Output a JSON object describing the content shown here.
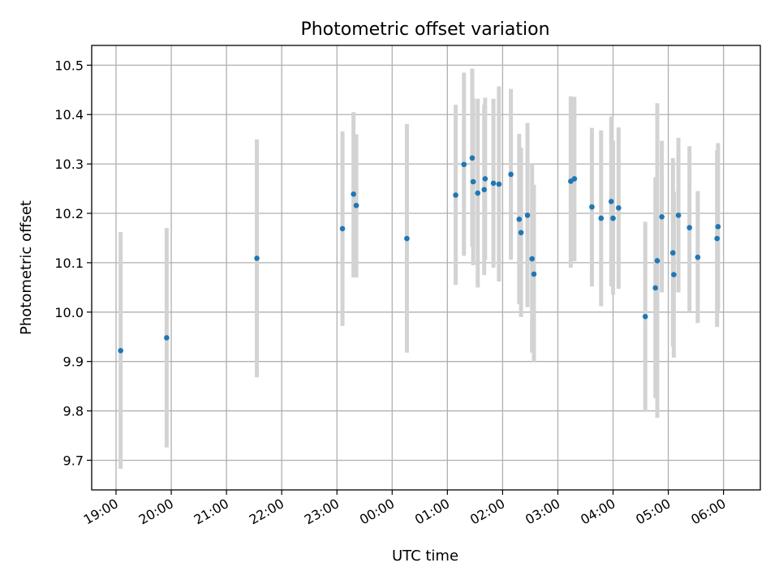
{
  "chart_data": {
    "type": "scatter",
    "title": "Photometric offset variation",
    "xlabel": "UTC time",
    "ylabel": "Photometric offset",
    "grid": true,
    "legend": "none",
    "colors": {
      "points": "#1f77b4",
      "errorbars": "#d3d3d3",
      "grid": "#b0b0b0"
    },
    "xlim": [
      "19:00",
      "06:40"
    ],
    "ylim": [
      9.64,
      10.54
    ],
    "x_ticks": [
      "19:00",
      "20:00",
      "21:00",
      "22:00",
      "23:00",
      "00:00",
      "01:00",
      "02:00",
      "03:00",
      "04:00",
      "05:00",
      "06:00"
    ],
    "y_ticks": [
      "9.7",
      "9.8",
      "9.9",
      "10.0",
      "10.1",
      "10.2",
      "10.3",
      "10.4",
      "10.5"
    ],
    "points": [
      {
        "x": "19:05",
        "y": 9.922,
        "lo": 9.683,
        "hi": 10.162
      },
      {
        "x": "19:55",
        "y": 9.948,
        "lo": 9.726,
        "hi": 10.17
      },
      {
        "x": "21:33",
        "y": 10.109,
        "lo": 9.868,
        "hi": 10.35
      },
      {
        "x": "23:06",
        "y": 10.169,
        "lo": 9.972,
        "hi": 10.366
      },
      {
        "x": "23:18",
        "y": 10.239,
        "lo": 10.07,
        "hi": 10.405
      },
      {
        "x": "23:21",
        "y": 10.216,
        "lo": 10.07,
        "hi": 10.36
      },
      {
        "x": "00:16",
        "y": 10.149,
        "lo": 9.918,
        "hi": 10.381
      },
      {
        "x": "01:09",
        "y": 10.237,
        "lo": 10.055,
        "hi": 10.42
      },
      {
        "x": "01:18",
        "y": 10.299,
        "lo": 10.114,
        "hi": 10.485
      },
      {
        "x": "01:27",
        "y": 10.312,
        "lo": 10.132,
        "hi": 10.493
      },
      {
        "x": "01:28",
        "y": 10.264,
        "lo": 10.095,
        "hi": 10.433
      },
      {
        "x": "01:33",
        "y": 10.241,
        "lo": 10.05,
        "hi": 10.432
      },
      {
        "x": "01:40",
        "y": 10.248,
        "lo": 10.075,
        "hi": 10.42
      },
      {
        "x": "01:41",
        "y": 10.27,
        "lo": 10.106,
        "hi": 10.434
      },
      {
        "x": "01:50",
        "y": 10.261,
        "lo": 10.09,
        "hi": 10.432
      },
      {
        "x": "01:56",
        "y": 10.259,
        "lo": 10.062,
        "hi": 10.457
      },
      {
        "x": "02:09",
        "y": 10.279,
        "lo": 10.106,
        "hi": 10.452
      },
      {
        "x": "02:18",
        "y": 10.188,
        "lo": 10.016,
        "hi": 10.361
      },
      {
        "x": "02:20",
        "y": 10.161,
        "lo": 9.99,
        "hi": 10.333
      },
      {
        "x": "02:27",
        "y": 10.196,
        "lo": 10.01,
        "hi": 10.383
      },
      {
        "x": "02:32",
        "y": 10.108,
        "lo": 9.918,
        "hi": 10.3
      },
      {
        "x": "02:34",
        "y": 10.077,
        "lo": 9.9,
        "hi": 10.258
      },
      {
        "x": "03:14",
        "y": 10.265,
        "lo": 10.09,
        "hi": 10.437
      },
      {
        "x": "03:18",
        "y": 10.27,
        "lo": 10.103,
        "hi": 10.436
      },
      {
        "x": "03:37",
        "y": 10.213,
        "lo": 10.052,
        "hi": 10.373
      },
      {
        "x": "03:47",
        "y": 10.19,
        "lo": 10.012,
        "hi": 10.368
      },
      {
        "x": "03:58",
        "y": 10.224,
        "lo": 10.052,
        "hi": 10.396
      },
      {
        "x": "04:00",
        "y": 10.19,
        "lo": 10.035,
        "hi": 10.347
      },
      {
        "x": "04:06",
        "y": 10.211,
        "lo": 10.047,
        "hi": 10.374
      },
      {
        "x": "04:35",
        "y": 9.991,
        "lo": 9.798,
        "hi": 10.183
      },
      {
        "x": "04:46",
        "y": 10.049,
        "lo": 9.826,
        "hi": 10.273
      },
      {
        "x": "04:48",
        "y": 10.104,
        "lo": 9.786,
        "hi": 10.423
      },
      {
        "x": "04:53",
        "y": 10.193,
        "lo": 10.04,
        "hi": 10.347
      },
      {
        "x": "05:05",
        "y": 10.12,
        "lo": 9.93,
        "hi": 10.312
      },
      {
        "x": "05:06",
        "y": 10.076,
        "lo": 9.908,
        "hi": 10.244
      },
      {
        "x": "05:11",
        "y": 10.196,
        "lo": 10.04,
        "hi": 10.353
      },
      {
        "x": "05:23",
        "y": 10.171,
        "lo": 10.002,
        "hi": 10.336
      },
      {
        "x": "05:32",
        "y": 10.111,
        "lo": 9.978,
        "hi": 10.245
      },
      {
        "x": "05:53",
        "y": 10.149,
        "lo": 9.97,
        "hi": 10.328
      },
      {
        "x": "05:54",
        "y": 10.173,
        "lo": 10.002,
        "hi": 10.342
      }
    ]
  }
}
